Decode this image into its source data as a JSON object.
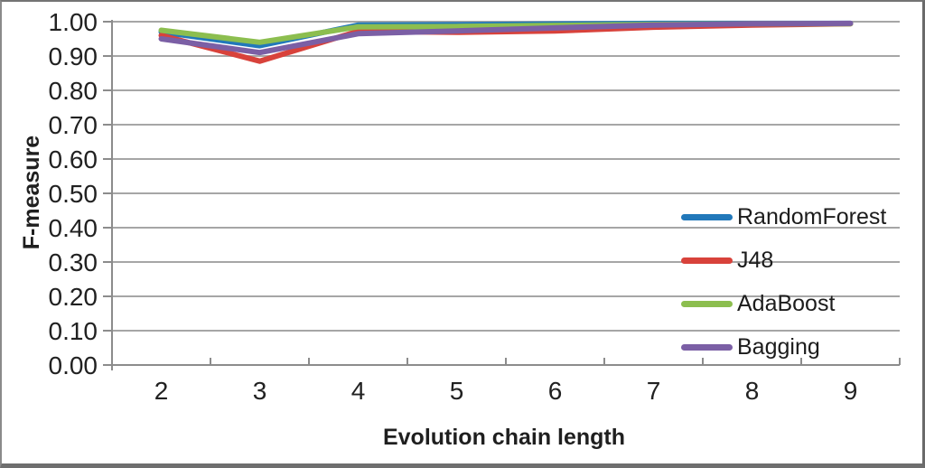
{
  "chart_data": {
    "type": "line",
    "title": "",
    "xlabel": "Evolution chain length",
    "ylabel": "F-measure",
    "categories": [
      "2",
      "3",
      "4",
      "5",
      "6",
      "7",
      "8",
      "9"
    ],
    "y_tick_labels": [
      "0.00",
      "0.10",
      "0.20",
      "0.30",
      "0.40",
      "0.50",
      "0.60",
      "0.70",
      "0.80",
      "0.90",
      "1.00"
    ],
    "ylim": [
      0.0,
      1.0
    ],
    "y_step": 0.1,
    "grid": true,
    "legend_position": "overlay-right",
    "series": [
      {
        "name": "RandomForest",
        "color": "#2178BA",
        "values": [
          0.97,
          0.93,
          0.99,
          0.991,
          0.993,
          0.995,
          0.995,
          0.995
        ]
      },
      {
        "name": "J48",
        "color": "#D8423B",
        "values": [
          0.96,
          0.885,
          0.972,
          0.969,
          0.973,
          0.984,
          0.99,
          0.994
        ]
      },
      {
        "name": "AdaBoost",
        "color": "#8CBE4F",
        "values": [
          0.975,
          0.94,
          0.985,
          0.986,
          0.989,
          0.992,
          0.994,
          0.994
        ]
      },
      {
        "name": "Bagging",
        "color": "#7B5FA5",
        "values": [
          0.95,
          0.91,
          0.965,
          0.973,
          0.982,
          0.99,
          0.994,
          0.995
        ]
      }
    ]
  },
  "colors": {
    "gridline": "#A6A6A6",
    "axis": "#8C8C8C",
    "tick_text": "#212121",
    "frame_border": "#6E6E6E",
    "background": "#FFFFFF"
  }
}
